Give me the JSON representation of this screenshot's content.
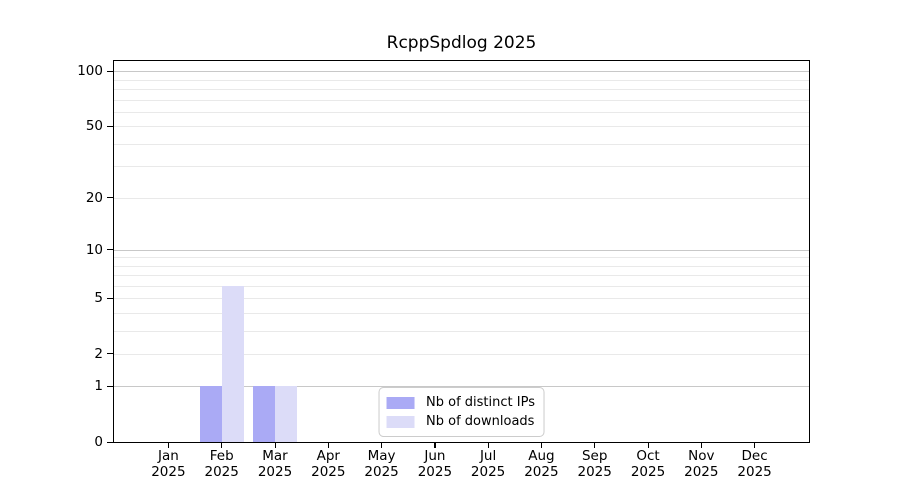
{
  "title": "RcppSpdlog 2025",
  "chart_data": {
    "type": "bar",
    "title": "RcppSpdlog 2025",
    "categories": [
      "Jan",
      "Feb",
      "Mar",
      "Apr",
      "May",
      "Jun",
      "Jul",
      "Aug",
      "Sep",
      "Oct",
      "Nov",
      "Dec"
    ],
    "year": "2025",
    "series": [
      {
        "name": "Nb of distinct IPs",
        "color": "#aaaaf5",
        "values": [
          0,
          1,
          1,
          0,
          0,
          0,
          0,
          0,
          0,
          0,
          0,
          0
        ]
      },
      {
        "name": "Nb of downloads",
        "color": "#dcdcf8",
        "values": [
          0,
          6,
          1,
          0,
          0,
          0,
          0,
          0,
          0,
          0,
          0,
          0
        ]
      }
    ],
    "yscale": "log1p",
    "ylim": [
      0,
      114
    ],
    "yticks": [
      0,
      1,
      2,
      5,
      10,
      20,
      50,
      100
    ],
    "grid": true,
    "gridlines_major": [
      1,
      10,
      100
    ],
    "gridlines_minor": [
      2,
      3,
      4,
      5,
      6,
      7,
      8,
      9,
      20,
      30,
      40,
      50,
      60,
      70,
      80,
      90
    ],
    "xlim_month_units": [
      -1.02,
      12.02
    ],
    "legend_position": "lower center",
    "colors": {
      "grid_major": "#c8c8c8",
      "grid_minor": "#e9e9e9",
      "spine": "#000000",
      "text": "#000000",
      "background": "#ffffff"
    }
  }
}
